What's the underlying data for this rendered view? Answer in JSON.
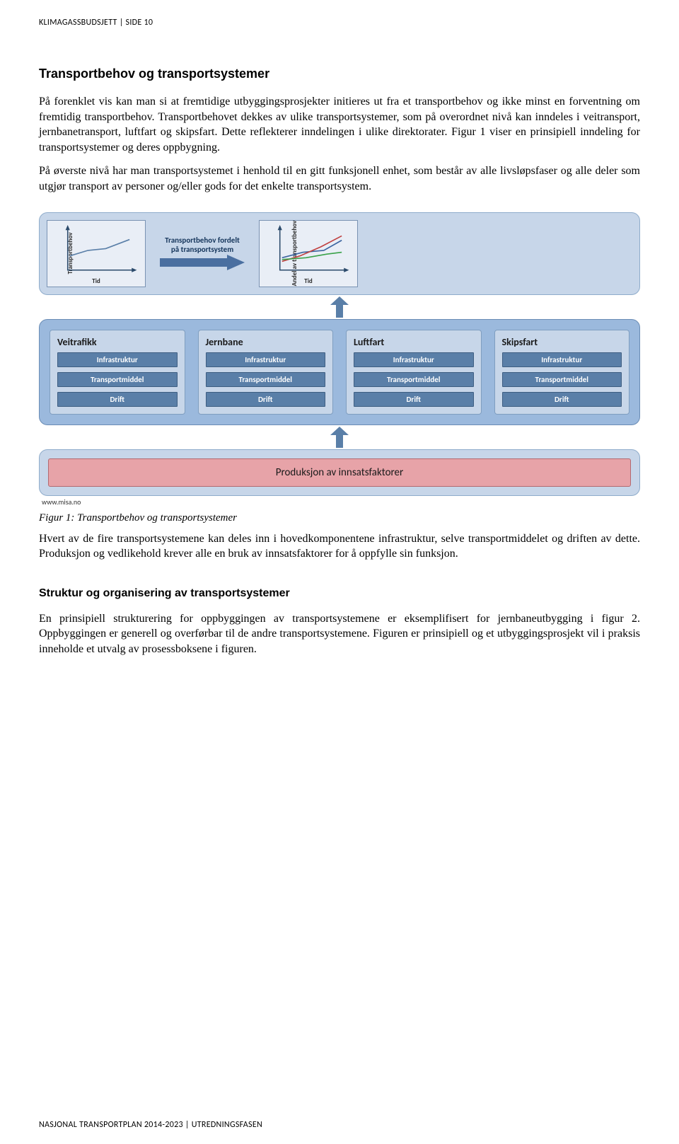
{
  "header": "KLIMAGASSBUDSJETT | SIDE 10",
  "footer": "NASJONAL TRANSPORTPLAN 2014-2023 | UTREDNINGSFASEN",
  "section_title": "Transportbehov og transportsystemer",
  "para1": "På forenklet vis kan man si at fremtidige utbyggingsprosjekter initieres ut fra et transportbehov og ikke minst en forventning om fremtidig transportbehov. Transportbehovet dekkes av ulike transportsystemer, som på overordnet nivå kan inndeles i veitransport, jernbanetransport, luftfart og skipsfart. Dette reflekterer inndelingen i ulike direktorater. Figur 1 viser en prinsipiell inndeling for transportsystemer og deres oppbygning.",
  "para2": "På øverste nivå har man transportsystemet i henhold til en gitt funksjonell enhet, som består av alle livsløpsfaser og alle deler som utgjør transport av personer og/eller gods for det enkelte transportsystem.",
  "caption": "Figur 1: Transportbehov og transportsystemer",
  "para3": "Hvert av de fire transportsystemene kan deles inn i hovedkomponentene infrastruktur, selve transportmiddelet og driften av dette. Produksjon og vedlikehold krever alle en bruk av innsatsfaktorer for å oppfylle sin funksjon.",
  "subsection_title": "Struktur og organisering av transportsystemer",
  "para4": "En prinsipiell strukturering for oppbyggingen av transportsystemene er eksemplifisert for jernbaneutbygging i figur 2. Oppbyggingen er generell og overførbar til de andre transportsystemene. Figuren er prinsipiell og et utbyggingsprosjekt vil i praksis inneholde et utvalg av prosessboksene i figuren.",
  "diagram": {
    "top": {
      "chart1": {
        "ylabel": "Transportbehov",
        "xlabel": "Tid",
        "line_color": "#5a7fa8",
        "axis_color": "#2b4a6b",
        "points": [
          [
            0,
            0.35
          ],
          [
            0.3,
            0.5
          ],
          [
            0.6,
            0.55
          ],
          [
            1,
            0.8
          ]
        ]
      },
      "arrow_label_1": "Transportbehov fordelt",
      "arrow_label_2": "på transportsystem",
      "arrow_color": "#4a6fa0",
      "chart2": {
        "ylabel": "Andel av transportbehov",
        "xlabel": "Tid",
        "axis_color": "#2b4a6b",
        "series": [
          {
            "color": "#3c65a0",
            "points": [
              [
                0,
                0.3
              ],
              [
                0.35,
                0.45
              ],
              [
                0.7,
                0.5
              ],
              [
                1,
                0.78
              ]
            ]
          },
          {
            "color": "#c04040",
            "points": [
              [
                0,
                0.2
              ],
              [
                0.3,
                0.35
              ],
              [
                0.65,
                0.6
              ],
              [
                1,
                0.9
              ]
            ]
          },
          {
            "color": "#3aa24a",
            "points": [
              [
                0,
                0.25
              ],
              [
                0.4,
                0.3
              ],
              [
                0.75,
                0.4
              ],
              [
                1,
                0.45
              ]
            ]
          }
        ]
      }
    },
    "systems": [
      {
        "title": "Veitrafikk",
        "subs": [
          "Infrastruktur",
          "Transportmiddel",
          "Drift"
        ]
      },
      {
        "title": "Jernbane",
        "subs": [
          "Infrastruktur",
          "Transportmiddel",
          "Drift"
        ]
      },
      {
        "title": "Luftfart",
        "subs": [
          "Infrastruktur",
          "Transportmiddel",
          "Drift"
        ]
      },
      {
        "title": "Skipsfart",
        "subs": [
          "Infrastruktur",
          "Transportmiddel",
          "Drift"
        ]
      }
    ],
    "production_label": "Produksjon av innsatsfaktorer",
    "watermark": "www.misa.no",
    "colors": {
      "band_light": "#c7d6e9",
      "band_mid": "#9bb9dd",
      "card_bg": "#c7d6e9",
      "pill_bg": "#5a7fa8",
      "prod_bg": "#e7a3a8"
    }
  }
}
